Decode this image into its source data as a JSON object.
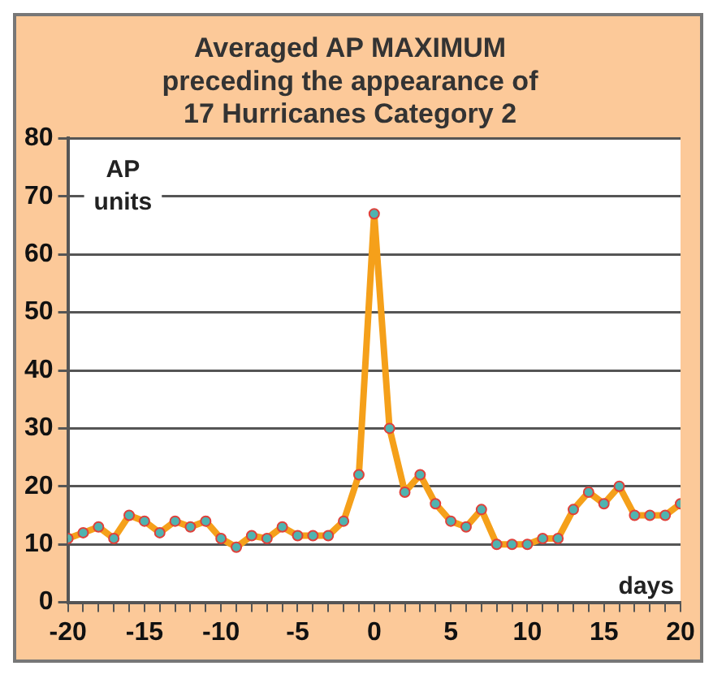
{
  "chart_data": {
    "type": "line",
    "title": [
      "Averaged AP MAXIMUM",
      "preceding the appearance of",
      "17 Hurricanes Category 2"
    ],
    "x": [
      -20,
      -19,
      -18,
      -17,
      -16,
      -15,
      -14,
      -13,
      -12,
      -11,
      -10,
      -9,
      -8,
      -7,
      -6,
      -5,
      -4,
      -3,
      -2,
      -1,
      0,
      1,
      2,
      3,
      4,
      5,
      6,
      7,
      8,
      9,
      10,
      11,
      12,
      13,
      14,
      15,
      16,
      17,
      18,
      19,
      20
    ],
    "series": [
      {
        "color": "#f5a01a",
        "values": [
          11,
          12,
          13,
          11,
          15,
          14,
          12,
          14,
          13,
          14,
          11,
          9.5,
          11.5,
          11,
          13,
          11.5,
          11.5,
          11.5,
          14,
          22,
          67,
          30,
          19,
          22,
          17,
          14,
          13,
          16,
          10,
          10,
          10,
          11,
          11,
          16,
          19,
          17,
          20,
          15,
          15,
          15,
          17
        ]
      }
    ],
    "xlim": [
      -20,
      20
    ],
    "xticks": [
      -20,
      {
        "value": -19,
        "label": null
      },
      {
        "value": -18,
        "label": null
      },
      {
        "value": -17,
        "label": null
      },
      {
        "value": -16,
        "label": null
      },
      -15,
      {
        "value": -14,
        "label": null
      },
      {
        "value": -13,
        "label": null
      },
      {
        "value": -12,
        "label": null
      },
      {
        "value": -11,
        "label": null
      },
      -10,
      {
        "value": -9,
        "label": null
      },
      {
        "value": -8,
        "label": null
      },
      {
        "value": -7,
        "label": null
      },
      {
        "value": -6,
        "label": null
      },
      -5,
      {
        "value": -4,
        "label": null
      },
      {
        "value": -3,
        "label": null
      },
      {
        "value": -2,
        "label": null
      },
      {
        "value": -1,
        "label": null
      },
      0,
      {
        "value": 1,
        "label": null
      },
      {
        "value": 2,
        "label": null
      },
      {
        "value": 3,
        "label": null
      },
      {
        "value": 4,
        "label": null
      },
      5,
      {
        "value": 6,
        "label": null
      },
      {
        "value": 7,
        "label": null
      },
      {
        "value": 8,
        "label": null
      },
      {
        "value": 9,
        "label": null
      },
      10,
      {
        "value": 11,
        "label": null
      },
      {
        "value": 12,
        "label": null
      },
      {
        "value": 13,
        "label": null
      },
      {
        "value": 14,
        "label": null
      },
      15,
      {
        "value": 16,
        "label": null
      },
      {
        "value": 17,
        "label": null
      },
      {
        "value": 18,
        "label": null
      },
      {
        "value": 19,
        "label": null
      },
      20
    ],
    "ylim": [
      0,
      80
    ],
    "yticks": [
      0,
      10,
      20,
      30,
      40,
      50,
      60,
      70,
      80
    ],
    "ylabel": "AP units",
    "xlabel": "days",
    "grid": "y",
    "marker": "circle",
    "line_style": "solid",
    "legend": false
  }
}
